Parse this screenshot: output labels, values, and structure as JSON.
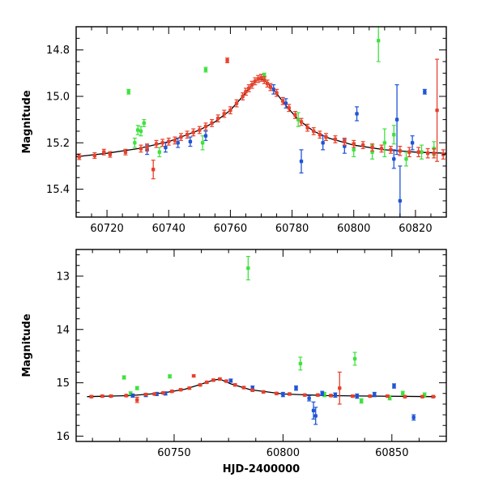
{
  "figure": {
    "colors": {
      "red": "#e8412c",
      "blue": "#1f55d6",
      "green": "#3fe23f",
      "model": "#000000",
      "axis": "#000000"
    }
  },
  "chart_data": [
    {
      "type": "scatter",
      "panel": "top",
      "ylabel": "Magnitude",
      "xlabel": "",
      "xlim": [
        60710,
        60830
      ],
      "ylim": [
        15.52,
        14.7
      ],
      "y_inverted": true,
      "x_ticks": [
        60720,
        60740,
        60760,
        60780,
        60800,
        60820
      ],
      "y_ticks": [
        14.8,
        15,
        15.2,
        15.4
      ],
      "model_curve": {
        "x": [
          60710,
          60720,
          60730,
          60740,
          60745,
          60750,
          60755,
          60760,
          60764,
          60767,
          60769,
          60771,
          60774,
          60778,
          60782,
          60787,
          60792,
          60800,
          60810,
          60820,
          60830
        ],
        "y": [
          15.26,
          15.245,
          15.225,
          15.195,
          15.17,
          15.145,
          15.11,
          15.06,
          15.0,
          14.95,
          14.925,
          14.93,
          14.97,
          15.04,
          15.1,
          15.15,
          15.18,
          15.21,
          15.23,
          15.24,
          15.245
        ]
      },
      "series": [
        {
          "color": "red",
          "points": [
            {
              "x": 60711,
              "y": 15.26,
              "e": 0.012
            },
            {
              "x": 60716,
              "y": 15.255,
              "e": 0.012
            },
            {
              "x": 60719,
              "y": 15.24,
              "e": 0.012
            },
            {
              "x": 60721,
              "y": 15.25,
              "e": 0.012
            },
            {
              "x": 60726,
              "y": 15.24,
              "e": 0.012
            },
            {
              "x": 60731,
              "y": 15.225,
              "e": 0.015
            },
            {
              "x": 60733,
              "y": 15.22,
              "e": 0.015
            },
            {
              "x": 60735,
              "y": 15.315,
              "e": 0.04
            },
            {
              "x": 60736,
              "y": 15.205,
              "e": 0.015
            },
            {
              "x": 60738,
              "y": 15.2,
              "e": 0.015
            },
            {
              "x": 60740,
              "y": 15.195,
              "e": 0.015
            },
            {
              "x": 60742,
              "y": 15.19,
              "e": 0.015
            },
            {
              "x": 60744,
              "y": 15.175,
              "e": 0.015
            },
            {
              "x": 60746,
              "y": 15.165,
              "e": 0.015
            },
            {
              "x": 60748,
              "y": 15.155,
              "e": 0.015
            },
            {
              "x": 60750,
              "y": 15.145,
              "e": 0.015
            },
            {
              "x": 60752,
              "y": 15.13,
              "e": 0.015
            },
            {
              "x": 60754,
              "y": 15.115,
              "e": 0.015
            },
            {
              "x": 60756,
              "y": 15.095,
              "e": 0.015
            },
            {
              "x": 60758,
              "y": 15.075,
              "e": 0.015
            },
            {
              "x": 60759,
              "y": 14.845,
              "e": 0.01
            },
            {
              "x": 60760,
              "y": 15.06,
              "e": 0.015
            },
            {
              "x": 60762,
              "y": 15.03,
              "e": 0.015
            },
            {
              "x": 60764,
              "y": 15.0,
              "e": 0.015
            },
            {
              "x": 60765,
              "y": 14.98,
              "e": 0.015
            },
            {
              "x": 60766,
              "y": 14.965,
              "e": 0.015
            },
            {
              "x": 60767,
              "y": 14.95,
              "e": 0.015
            },
            {
              "x": 60768,
              "y": 14.935,
              "e": 0.015
            },
            {
              "x": 60769,
              "y": 14.925,
              "e": 0.015
            },
            {
              "x": 60770,
              "y": 14.92,
              "e": 0.015
            },
            {
              "x": 60771,
              "y": 14.93,
              "e": 0.015
            },
            {
              "x": 60772,
              "y": 14.945,
              "e": 0.015
            },
            {
              "x": 60773,
              "y": 14.96,
              "e": 0.015
            },
            {
              "x": 60775,
              "y": 14.985,
              "e": 0.015
            },
            {
              "x": 60777,
              "y": 15.02,
              "e": 0.015
            },
            {
              "x": 60779,
              "y": 15.05,
              "e": 0.015
            },
            {
              "x": 60781,
              "y": 15.08,
              "e": 0.015
            },
            {
              "x": 60783,
              "y": 15.11,
              "e": 0.015
            },
            {
              "x": 60785,
              "y": 15.135,
              "e": 0.015
            },
            {
              "x": 60787,
              "y": 15.15,
              "e": 0.015
            },
            {
              "x": 60789,
              "y": 15.165,
              "e": 0.015
            },
            {
              "x": 60791,
              "y": 15.175,
              "e": 0.015
            },
            {
              "x": 60794,
              "y": 15.185,
              "e": 0.015
            },
            {
              "x": 60797,
              "y": 15.195,
              "e": 0.015
            },
            {
              "x": 60800,
              "y": 15.205,
              "e": 0.015
            },
            {
              "x": 60803,
              "y": 15.21,
              "e": 0.015
            },
            {
              "x": 60806,
              "y": 15.22,
              "e": 0.015
            },
            {
              "x": 60809,
              "y": 15.225,
              "e": 0.015
            },
            {
              "x": 60812,
              "y": 15.23,
              "e": 0.015
            },
            {
              "x": 60815,
              "y": 15.235,
              "e": 0.02
            },
            {
              "x": 60818,
              "y": 15.24,
              "e": 0.02
            },
            {
              "x": 60821,
              "y": 15.24,
              "e": 0.02
            },
            {
              "x": 60824,
              "y": 15.245,
              "e": 0.02
            },
            {
              "x": 60826,
              "y": 15.245,
              "e": 0.02
            },
            {
              "x": 60827,
              "y": 15.06,
              "e": 0.22
            },
            {
              "x": 60829,
              "y": 15.25,
              "e": 0.02
            }
          ]
        },
        {
          "color": "blue",
          "points": [
            {
              "x": 60733,
              "y": 15.23,
              "e": 0.02
            },
            {
              "x": 60739,
              "y": 15.22,
              "e": 0.02
            },
            {
              "x": 60743,
              "y": 15.2,
              "e": 0.02
            },
            {
              "x": 60747,
              "y": 15.195,
              "e": 0.02
            },
            {
              "x": 60752,
              "y": 15.17,
              "e": 0.02
            },
            {
              "x": 60774,
              "y": 14.97,
              "e": 0.02
            },
            {
              "x": 60778,
              "y": 15.03,
              "e": 0.02
            },
            {
              "x": 60783,
              "y": 15.28,
              "e": 0.05
            },
            {
              "x": 60790,
              "y": 15.2,
              "e": 0.03
            },
            {
              "x": 60797,
              "y": 15.215,
              "e": 0.03
            },
            {
              "x": 60801,
              "y": 15.075,
              "e": 0.03
            },
            {
              "x": 60813,
              "y": 15.27,
              "e": 0.04
            },
            {
              "x": 60814,
              "y": 15.1,
              "e": 0.15
            },
            {
              "x": 60815,
              "y": 15.45,
              "e": 0.15
            },
            {
              "x": 60819,
              "y": 15.2,
              "e": 0.03
            },
            {
              "x": 60823,
              "y": 14.98,
              "e": 0.01
            }
          ]
        },
        {
          "color": "green",
          "points": [
            {
              "x": 60727,
              "y": 14.98,
              "e": 0.01
            },
            {
              "x": 60729,
              "y": 15.2,
              "e": 0.02
            },
            {
              "x": 60730,
              "y": 15.145,
              "e": 0.02
            },
            {
              "x": 60731,
              "y": 15.15,
              "e": 0.02
            },
            {
              "x": 60732,
              "y": 15.115,
              "e": 0.015
            },
            {
              "x": 60737,
              "y": 15.24,
              "e": 0.02
            },
            {
              "x": 60751,
              "y": 15.2,
              "e": 0.03
            },
            {
              "x": 60752,
              "y": 14.885,
              "e": 0.01
            },
            {
              "x": 60771,
              "y": 14.91,
              "e": 0.01
            },
            {
              "x": 60782,
              "y": 15.1,
              "e": 0.03
            },
            {
              "x": 60800,
              "y": 15.23,
              "e": 0.03
            },
            {
              "x": 60806,
              "y": 15.24,
              "e": 0.03
            },
            {
              "x": 60808,
              "y": 14.76,
              "e": 0.09
            },
            {
              "x": 60810,
              "y": 15.2,
              "e": 0.06
            },
            {
              "x": 60813,
              "y": 15.165,
              "e": 0.04
            },
            {
              "x": 60817,
              "y": 15.27,
              "e": 0.03
            },
            {
              "x": 60822,
              "y": 15.24,
              "e": 0.03
            },
            {
              "x": 60826,
              "y": 15.225,
              "e": 0.03
            }
          ]
        }
      ]
    },
    {
      "type": "scatter",
      "panel": "bottom",
      "ylabel": "Magnitude",
      "xlabel": "HJD-2400000",
      "xlim": [
        60705,
        60875
      ],
      "ylim": [
        16.1,
        12.5
      ],
      "y_inverted": true,
      "x_ticks": [
        60750,
        60800,
        60850
      ],
      "y_ticks": [
        13,
        14,
        15,
        16
      ],
      "model_curve": {
        "x": [
          60710,
          60730,
          60745,
          60755,
          60762,
          60768,
          60771,
          60776,
          60785,
          60800,
          60820,
          60840,
          60870
        ],
        "y": [
          15.26,
          15.24,
          15.19,
          15.12,
          15.03,
          14.95,
          14.93,
          15.02,
          15.13,
          15.21,
          15.24,
          15.25,
          15.26
        ]
      },
      "series": [
        {
          "color": "red",
          "points": [
            {
              "x": 60712,
              "y": 15.26,
              "e": 0.02
            },
            {
              "x": 60717,
              "y": 15.25,
              "e": 0.02
            },
            {
              "x": 60721,
              "y": 15.25,
              "e": 0.02
            },
            {
              "x": 60728,
              "y": 15.24,
              "e": 0.02
            },
            {
              "x": 60733,
              "y": 15.32,
              "e": 0.05
            },
            {
              "x": 60737,
              "y": 15.22,
              "e": 0.02
            },
            {
              "x": 60741,
              "y": 15.21,
              "e": 0.02
            },
            {
              "x": 60745,
              "y": 15.19,
              "e": 0.02
            },
            {
              "x": 60749,
              "y": 15.16,
              "e": 0.02
            },
            {
              "x": 60753,
              "y": 15.13,
              "e": 0.02
            },
            {
              "x": 60757,
              "y": 15.1,
              "e": 0.02
            },
            {
              "x": 60759,
              "y": 14.87,
              "e": 0.02
            },
            {
              "x": 60762,
              "y": 15.04,
              "e": 0.02
            },
            {
              "x": 60765,
              "y": 14.99,
              "e": 0.02
            },
            {
              "x": 60768,
              "y": 14.95,
              "e": 0.02
            },
            {
              "x": 60771,
              "y": 14.93,
              "e": 0.02
            },
            {
              "x": 60774,
              "y": 14.97,
              "e": 0.02
            },
            {
              "x": 60778,
              "y": 15.04,
              "e": 0.02
            },
            {
              "x": 60782,
              "y": 15.09,
              "e": 0.02
            },
            {
              "x": 60786,
              "y": 15.14,
              "e": 0.02
            },
            {
              "x": 60791,
              "y": 15.17,
              "e": 0.02
            },
            {
              "x": 60797,
              "y": 15.2,
              "e": 0.02
            },
            {
              "x": 60803,
              "y": 15.21,
              "e": 0.02
            },
            {
              "x": 60810,
              "y": 15.23,
              "e": 0.02
            },
            {
              "x": 60816,
              "y": 15.23,
              "e": 0.02
            },
            {
              "x": 60822,
              "y": 15.24,
              "e": 0.02
            },
            {
              "x": 60826,
              "y": 15.1,
              "e": 0.3
            },
            {
              "x": 60832,
              "y": 15.25,
              "e": 0.02
            },
            {
              "x": 60840,
              "y": 15.25,
              "e": 0.02
            },
            {
              "x": 60848,
              "y": 15.25,
              "e": 0.02
            },
            {
              "x": 60856,
              "y": 15.26,
              "e": 0.02
            },
            {
              "x": 60864,
              "y": 15.26,
              "e": 0.02
            },
            {
              "x": 60869,
              "y": 15.26,
              "e": 0.02
            }
          ]
        },
        {
          "color": "blue",
          "points": [
            {
              "x": 60731,
              "y": 15.24,
              "e": 0.03
            },
            {
              "x": 60737,
              "y": 15.23,
              "e": 0.03
            },
            {
              "x": 60742,
              "y": 15.21,
              "e": 0.03
            },
            {
              "x": 60746,
              "y": 15.2,
              "e": 0.03
            },
            {
              "x": 60776,
              "y": 14.96,
              "e": 0.03
            },
            {
              "x": 60786,
              "y": 15.1,
              "e": 0.04
            },
            {
              "x": 60800,
              "y": 15.22,
              "e": 0.04
            },
            {
              "x": 60806,
              "y": 15.1,
              "e": 0.04
            },
            {
              "x": 60812,
              "y": 15.29,
              "e": 0.05
            },
            {
              "x": 60814,
              "y": 15.52,
              "e": 0.16
            },
            {
              "x": 60815,
              "y": 15.62,
              "e": 0.16
            },
            {
              "x": 60818,
              "y": 15.2,
              "e": 0.04
            },
            {
              "x": 60824,
              "y": 15.23,
              "e": 0.04
            },
            {
              "x": 60834,
              "y": 15.25,
              "e": 0.04
            },
            {
              "x": 60842,
              "y": 15.22,
              "e": 0.04
            },
            {
              "x": 60851,
              "y": 15.06,
              "e": 0.04
            },
            {
              "x": 60860,
              "y": 15.65,
              "e": 0.05
            }
          ]
        },
        {
          "color": "green",
          "points": [
            {
              "x": 60727,
              "y": 14.9,
              "e": 0.03
            },
            {
              "x": 60730,
              "y": 15.2,
              "e": 0.03
            },
            {
              "x": 60733,
              "y": 15.1,
              "e": 0.03
            },
            {
              "x": 60748,
              "y": 14.88,
              "e": 0.03
            },
            {
              "x": 60784,
              "y": 12.85,
              "e": 0.22
            },
            {
              "x": 60808,
              "y": 14.64,
              "e": 0.12
            },
            {
              "x": 60819,
              "y": 15.22,
              "e": 0.04
            },
            {
              "x": 60833,
              "y": 14.55,
              "e": 0.12
            },
            {
              "x": 60836,
              "y": 15.34,
              "e": 0.04
            },
            {
              "x": 60849,
              "y": 15.28,
              "e": 0.04
            },
            {
              "x": 60855,
              "y": 15.2,
              "e": 0.04
            },
            {
              "x": 60865,
              "y": 15.23,
              "e": 0.04
            }
          ]
        }
      ]
    }
  ]
}
